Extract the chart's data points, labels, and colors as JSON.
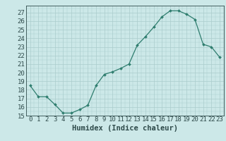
{
  "x": [
    0,
    1,
    2,
    3,
    4,
    5,
    6,
    7,
    8,
    9,
    10,
    11,
    12,
    13,
    14,
    15,
    16,
    17,
    18,
    19,
    20,
    21,
    22,
    23
  ],
  "y": [
    18.5,
    17.2,
    17.2,
    16.3,
    15.3,
    15.3,
    15.7,
    16.2,
    18.5,
    19.8,
    20.1,
    20.5,
    21.0,
    23.2,
    24.2,
    25.3,
    26.5,
    27.2,
    27.2,
    26.8,
    26.2,
    23.3,
    23.0,
    21.8
  ],
  "line_color": "#2e7d6e",
  "marker_color": "#2e7d6e",
  "bg_color": "#cce8e8",
  "grid_color": "#aacccc",
  "xlabel": "Humidex (Indice chaleur)",
  "ylim": [
    15,
    27.8
  ],
  "xlim": [
    -0.5,
    23.5
  ],
  "yticks": [
    15,
    16,
    17,
    18,
    19,
    20,
    21,
    22,
    23,
    24,
    25,
    26,
    27
  ],
  "xticks": [
    0,
    1,
    2,
    3,
    4,
    5,
    6,
    7,
    8,
    9,
    10,
    11,
    12,
    13,
    14,
    15,
    16,
    17,
    18,
    19,
    20,
    21,
    22,
    23
  ],
  "font_color": "#2e4a4a",
  "xlabel_fontsize": 7.5,
  "tick_fontsize": 6.5
}
